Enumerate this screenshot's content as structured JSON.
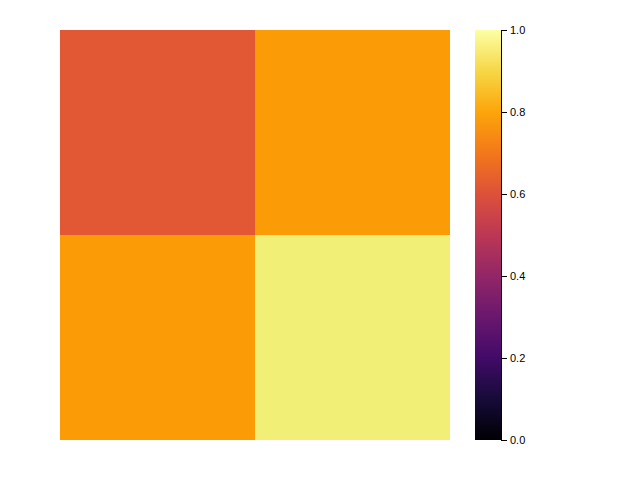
{
  "chart_data": {
    "type": "heatmap",
    "values": [
      [
        0.62,
        0.78
      ],
      [
        0.78,
        0.95
      ]
    ],
    "colorbar_range": [
      0.0,
      1.0
    ],
    "colorbar_ticks": [
      {
        "value": 0.0,
        "label": "0.0"
      },
      0.2,
      0.4,
      0.6,
      0.8,
      {
        "value": 1.0,
        "label": "1.0"
      }
    ],
    "tick_labels": false
  }
}
